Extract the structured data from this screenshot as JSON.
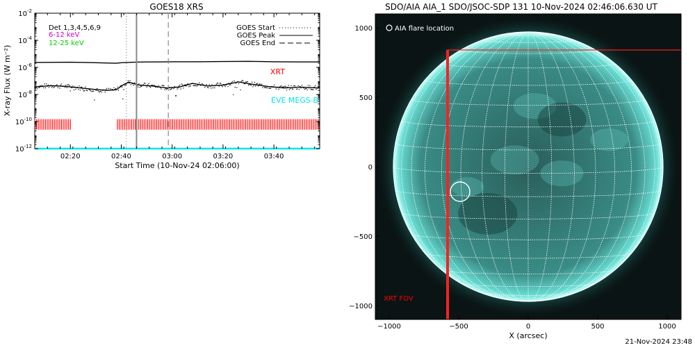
{
  "left_chart": {
    "title": "GOES18 XRS",
    "ylabel": "X-ray Flux (W m⁻²)",
    "xlabel": "Start Time (10-Nov-24 02:06:00)",
    "legend": {
      "text": [
        {
          "label": "Det 1,3,4,5,6,9",
          "color": "#000000"
        },
        {
          "label": "6-12 keV",
          "color": "#cc00cc"
        },
        {
          "label": "12-25 keV",
          "color": "#00cc00"
        }
      ],
      "lines": [
        {
          "label": "GOES Start",
          "style": "dotted"
        },
        {
          "label": "GOES Peak",
          "style": "solid"
        },
        {
          "label": "GOES End",
          "style": "dashed"
        }
      ]
    },
    "annotations": [
      {
        "text": "XRT",
        "color": "#ff0000"
      },
      {
        "text": "EVE MEGS-B",
        "color": "#00e5e5"
      }
    ]
  },
  "right_chart": {
    "title": "SDO/AIA AIA_1 SDO/JSOC-SDP 131 10-Nov-2024 02:46:06.630 UT",
    "xlabel": "X (arcsec)",
    "legend_label": "AIA flare location",
    "fov_label": "XRT FOV"
  },
  "footer": {
    "timestamp": "21-Nov-2024 23:48"
  },
  "chart_data": [
    {
      "type": "line",
      "title": "GOES18 XRS",
      "xlabel": "Start Time (10-Nov-24 02:06:00)",
      "ylabel": "X-ray Flux (W m⁻²)",
      "yscale": "log",
      "ylim": [
        1e-12,
        0.01
      ],
      "xlim_minutes": [
        126,
        238
      ],
      "x_tick_labels": [
        "02:20",
        "02:40",
        "03:00",
        "03:20",
        "03:40"
      ],
      "x_tick_minutes": [
        140,
        160,
        180,
        200,
        220
      ],
      "y_tick_exponents": [
        -12,
        -10,
        -8,
        -6,
        -4,
        -2
      ],
      "series": [
        {
          "name": "GOES long channel",
          "color": "#000000",
          "x_minutes": [
            126,
            140,
            150,
            158,
            160,
            165,
            170,
            175,
            180,
            190,
            200,
            210,
            220,
            230,
            238
          ],
          "y": [
            2.3e-06,
            2.4e-06,
            2.2e-06,
            2e-06,
            2.2e-06,
            2.4e-06,
            2.5e-06,
            2.5e-06,
            2.6e-06,
            2.6e-06,
            2.7e-06,
            2.8e-06,
            2.6e-06,
            2.5e-06,
            2.5e-06
          ]
        },
        {
          "name": "GOES short channel",
          "color": "#000000",
          "x_minutes": [
            126,
            132,
            138,
            144,
            150,
            154,
            158,
            161,
            163,
            167,
            172,
            178,
            183,
            188,
            194,
            200,
            206,
            212,
            218,
            224,
            230,
            238
          ],
          "y": [
            3.5e-08,
            4.5e-08,
            4e-08,
            3e-08,
            2.3e-08,
            2e-08,
            2.2e-08,
            5.5e-08,
            8e-08,
            5e-08,
            4.2e-08,
            3e-08,
            3.6e-08,
            6.5e-08,
            4.2e-08,
            5e-08,
            8.5e-08,
            5.5e-08,
            3.8e-08,
            3e-08,
            3.5e-08,
            3e-08
          ]
        },
        {
          "name": "EVE MEGS-B",
          "color": "#00e5e5",
          "x_minutes": [
            126,
            238
          ],
          "y": [
            1e-12,
            1e-12
          ]
        }
      ],
      "vertical_markers": [
        {
          "name": "GOES Start",
          "x_minutes": 162,
          "style": "dotted"
        },
        {
          "name": "GOES Peak",
          "x_minutes": 166,
          "style": "solid"
        },
        {
          "name": "GOES End",
          "x_minutes": 178.5,
          "style": "dashed"
        }
      ],
      "xrt_coverage_minutes": [
        [
          126,
          140.5
        ],
        [
          158.5,
          238
        ]
      ]
    },
    {
      "type": "image",
      "title": "SDO/AIA AIA_1 SDO/JSOC-SDP 131 10-Nov-2024 02:46:06.630 UT",
      "xlabel": "X (arcsec)",
      "xlim": [
        -1100,
        1100
      ],
      "ylim": [
        -1100,
        1100
      ],
      "x_ticks": [
        -1000,
        -500,
        0,
        500,
        1000
      ],
      "y_ticks": [
        1000,
        500,
        0,
        -500,
        -1000
      ],
      "solar_radius_arcsec": 970,
      "flare_location": [
        -490,
        -180
      ],
      "xrt_fov": {
        "x": [
          -580,
          1100
        ],
        "y": [
          -1100,
          840
        ]
      }
    }
  ]
}
